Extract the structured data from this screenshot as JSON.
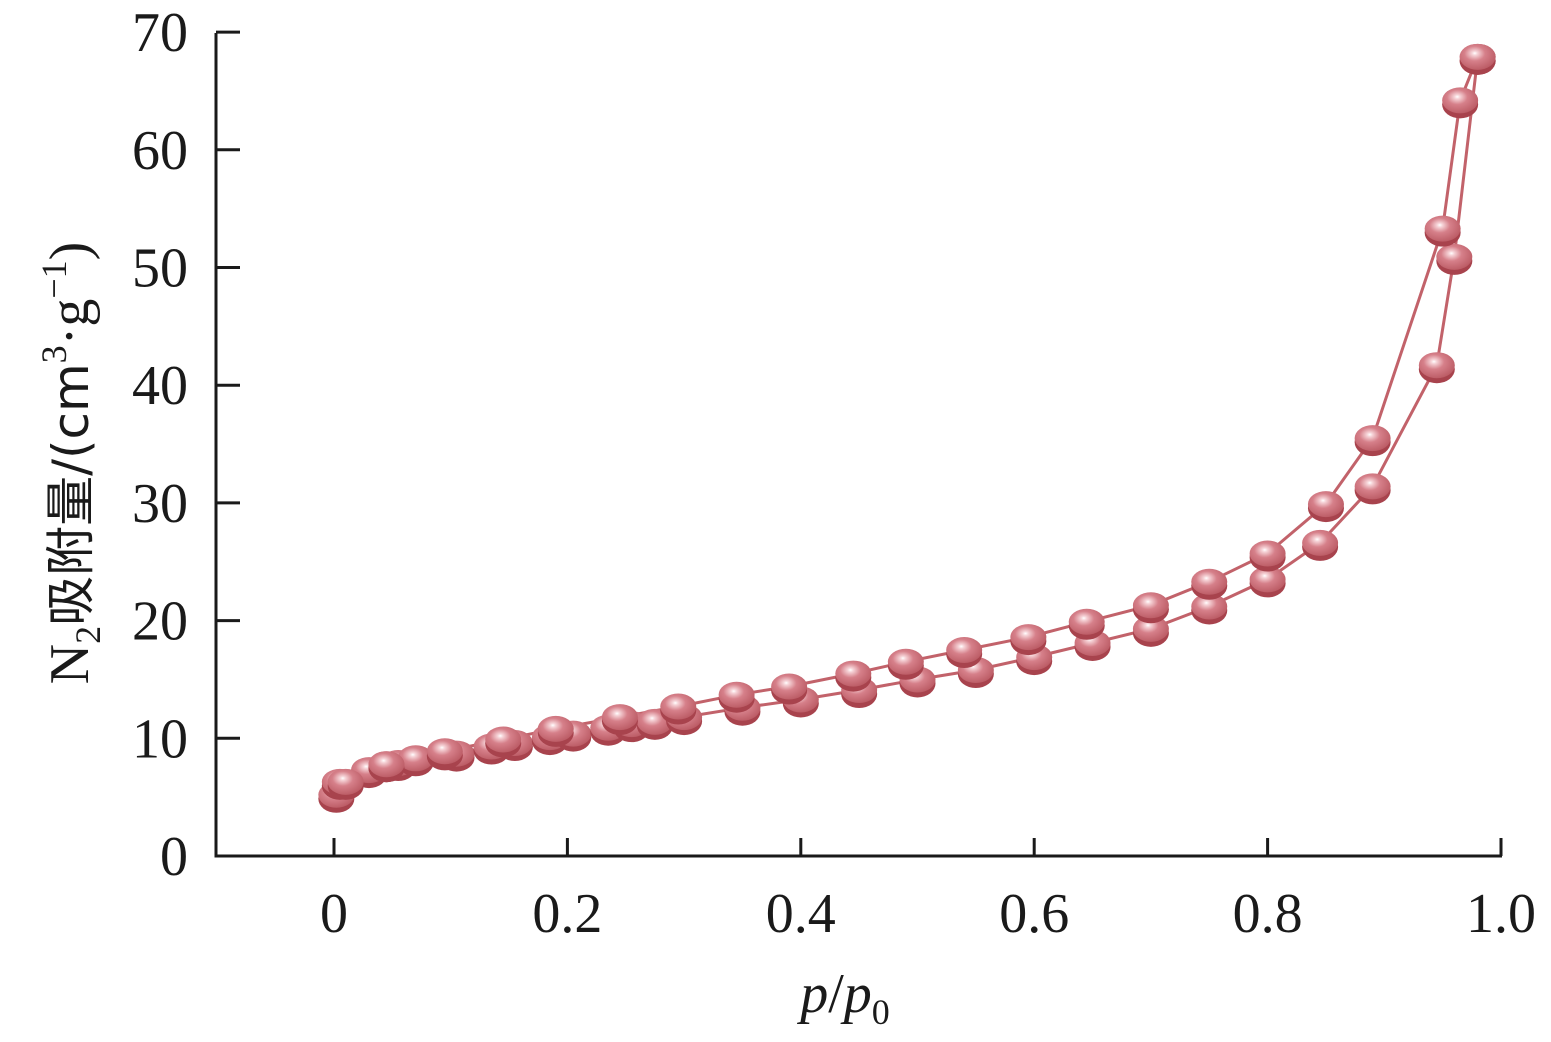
{
  "chart_data": {
    "type": "line",
    "xlabel": "p/p0",
    "xlabel_parts": {
      "main1": "p",
      "sep": "/",
      "main2": "p",
      "sub": "0"
    },
    "ylabel": "N2吸附量/(cm3·g−1)",
    "ylabel_parts": {
      "n": "N",
      "n_sub": "2",
      "text": "吸附量/(cm",
      "sup1": "3",
      "mid": "·g",
      "sup2": "−1",
      "end": ")"
    },
    "xlim": [
      -0.1,
      1.0
    ],
    "ylim": [
      0,
      70
    ],
    "xticks": [
      0,
      0.2,
      0.4,
      0.6,
      0.8,
      1.0
    ],
    "xtick_labels": [
      "0",
      "0.2",
      "0.4",
      "0.6",
      "0.8",
      "1.0"
    ],
    "yticks": [
      0,
      10,
      20,
      30,
      40,
      50,
      60,
      70
    ],
    "ytick_labels": [
      "0",
      "10",
      "20",
      "30",
      "40",
      "50",
      "60",
      "70"
    ],
    "grid": false,
    "series": [
      {
        "color": "#c2626a",
        "points": [
          [
            0.002,
            5.2
          ],
          [
            0.005,
            6.3
          ],
          [
            0.03,
            7.3
          ],
          [
            0.045,
            7.8
          ],
          [
            0.055,
            7.9
          ],
          [
            0.07,
            8.3
          ],
          [
            0.095,
            8.8
          ],
          [
            0.105,
            8.7
          ],
          [
            0.135,
            9.3
          ],
          [
            0.155,
            9.6
          ],
          [
            0.185,
            10.1
          ],
          [
            0.205,
            10.4
          ],
          [
            0.235,
            10.9
          ],
          [
            0.255,
            11.2
          ],
          [
            0.275,
            11.4
          ],
          [
            0.3,
            11.8
          ],
          [
            0.35,
            12.6
          ],
          [
            0.4,
            13.3
          ],
          [
            0.45,
            14.1
          ],
          [
            0.5,
            15.0
          ],
          [
            0.55,
            15.8
          ],
          [
            0.6,
            16.9
          ],
          [
            0.65,
            18.1
          ],
          [
            0.7,
            19.3
          ],
          [
            0.75,
            21.2
          ],
          [
            0.8,
            23.5
          ],
          [
            0.845,
            26.6
          ],
          [
            0.89,
            31.4
          ],
          [
            0.945,
            41.7
          ],
          [
            0.96,
            50.9
          ],
          [
            0.98,
            67.9
          ]
        ]
      },
      {
        "color": "#c2626a",
        "points": [
          [
            0.98,
            67.9
          ],
          [
            0.965,
            64.2
          ],
          [
            0.95,
            53.3
          ],
          [
            0.89,
            35.5
          ],
          [
            0.85,
            29.9
          ],
          [
            0.8,
            25.7
          ],
          [
            0.75,
            23.3
          ],
          [
            0.7,
            21.3
          ],
          [
            0.645,
            19.9
          ],
          [
            0.595,
            18.6
          ],
          [
            0.54,
            17.5
          ],
          [
            0.49,
            16.5
          ],
          [
            0.445,
            15.5
          ],
          [
            0.39,
            14.4
          ],
          [
            0.345,
            13.7
          ],
          [
            0.295,
            12.7
          ],
          [
            0.245,
            11.8
          ],
          [
            0.19,
            10.8
          ],
          [
            0.145,
            9.9
          ],
          [
            0.095,
            8.9
          ],
          [
            0.045,
            7.8
          ],
          [
            0.01,
            6.3
          ]
        ]
      }
    ]
  }
}
